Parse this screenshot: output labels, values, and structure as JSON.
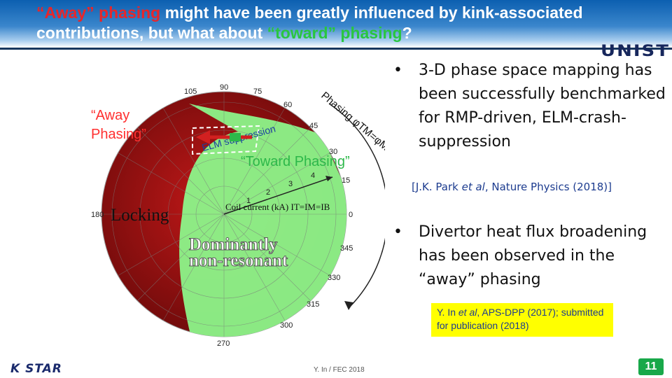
{
  "title": {
    "part1": "“Away” phasing",
    "part2": " might have been greatly influenced by kink-associated contributions, but what about ",
    "part3": "“toward” phasing",
    "part4": "?"
  },
  "logo_text": "UNIST",
  "figure": {
    "away_label": "“Away\nPhasing”",
    "toward_label": "“Toward Phasing”",
    "locking_label": "Locking",
    "dominant_label": "Dominantly\nnon-resonant",
    "phasing_arc_label": "Phasing φTM=φMB",
    "elm_arc_label": "ELM suppression",
    "coil_label": "Coil current (kA) IT=IM=IB",
    "angle_ticks": [
      "90",
      "75",
      "60",
      "45",
      "30",
      "15",
      "0",
      "345",
      "330",
      "315",
      "300",
      "270",
      "180",
      "105"
    ],
    "radial_ticks": [
      "1",
      "2",
      "3",
      "4"
    ],
    "colors": {
      "red_region": "#8b0e0e",
      "green_region": "#8cf58a",
      "arrow": "#d22020"
    }
  },
  "bullets": [
    {
      "text": "3-D phase space mapping has been successfully benchmarked for RMP-driven, ELM-crash-suppression"
    },
    {
      "text": "Divertor heat flux broadening has been observed in the “away” phasing"
    }
  ],
  "ref1": {
    "prefix": "[J.K. Park ",
    "italic": "et al",
    "suffix": ", Nature Physics (2018)]"
  },
  "ref2": {
    "prefix": "Y. In ",
    "italic": "et al",
    "suffix": ", APS-DPP (2017); submitted for publication (2018)"
  },
  "footer": {
    "center": "Y. In / FEC 2018",
    "logo": "K STAR",
    "page": "11"
  }
}
